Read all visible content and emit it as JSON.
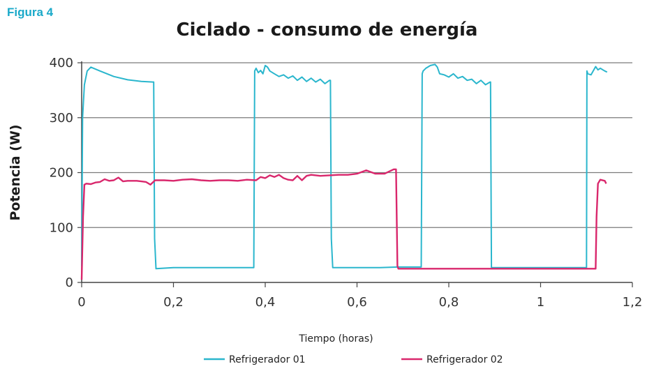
{
  "figure_label": "Figura 4",
  "colors": {
    "accent": "#1aa9c9",
    "series1": "#2ab6cd",
    "series2": "#d9276c",
    "grid": "#7a7a7a"
  },
  "chart_data": {
    "type": "line",
    "title": "Ciclado - consumo de energía",
    "xlabel": "Tiempo (horas)",
    "ylabel": "Potencia (W)",
    "xlim": [
      0,
      1.2
    ],
    "ylim": [
      0,
      400
    ],
    "xticks": [
      "0",
      "0,2",
      "0,4",
      "0,6",
      "0,8",
      "1",
      "1,2"
    ],
    "yticks": [
      "0",
      "100",
      "200",
      "300",
      "400"
    ],
    "grid": "horizontal",
    "legend": "bottom",
    "series": [
      {
        "name": "Refrigerador 01",
        "color": "#2ab6cd",
        "x": [
          0,
          0.002,
          0.006,
          0.012,
          0.02,
          0.04,
          0.07,
          0.1,
          0.13,
          0.155,
          0.157,
          0.159,
          0.162,
          0.2,
          0.25,
          0.3,
          0.35,
          0.375,
          0.377,
          0.38,
          0.385,
          0.39,
          0.395,
          0.4,
          0.405,
          0.41,
          0.42,
          0.43,
          0.44,
          0.45,
          0.46,
          0.47,
          0.48,
          0.49,
          0.5,
          0.51,
          0.52,
          0.53,
          0.54,
          0.542,
          0.544,
          0.547,
          0.6,
          0.65,
          0.69,
          0.72,
          0.74,
          0.742,
          0.744,
          0.75,
          0.76,
          0.77,
          0.775,
          0.78,
          0.79,
          0.8,
          0.81,
          0.82,
          0.83,
          0.84,
          0.85,
          0.86,
          0.87,
          0.88,
          0.89,
          0.891,
          0.893,
          0.95,
          1.0,
          1.05,
          1.1,
          1.101,
          1.103,
          1.11,
          1.12,
          1.125,
          1.13,
          1.14,
          1.145
        ],
        "y": [
          30,
          300,
          360,
          385,
          392,
          385,
          375,
          369,
          366,
          365,
          365,
          80,
          25,
          27,
          27,
          27,
          27,
          27,
          385,
          390,
          382,
          386,
          380,
          395,
          392,
          385,
          380,
          375,
          378,
          372,
          376,
          368,
          374,
          366,
          372,
          365,
          370,
          362,
          368,
          368,
          80,
          27,
          27,
          27,
          28,
          28,
          28,
          380,
          385,
          390,
          395,
          397,
          392,
          380,
          378,
          374,
          380,
          372,
          375,
          368,
          370,
          362,
          368,
          360,
          365,
          365,
          27,
          27,
          27,
          27,
          27,
          385,
          380,
          378,
          393,
          387,
          390,
          385,
          383
        ]
      },
      {
        "name": "Refrigerador 02",
        "color": "#d9276c",
        "x": [
          0,
          0.003,
          0.006,
          0.01,
          0.02,
          0.03,
          0.04,
          0.05,
          0.06,
          0.07,
          0.08,
          0.09,
          0.1,
          0.12,
          0.13,
          0.14,
          0.15,
          0.16,
          0.18,
          0.2,
          0.22,
          0.24,
          0.26,
          0.28,
          0.3,
          0.32,
          0.34,
          0.36,
          0.38,
          0.39,
          0.4,
          0.41,
          0.42,
          0.43,
          0.44,
          0.45,
          0.46,
          0.47,
          0.48,
          0.49,
          0.5,
          0.52,
          0.54,
          0.56,
          0.58,
          0.6,
          0.62,
          0.64,
          0.66,
          0.67,
          0.68,
          0.685,
          0.688,
          0.69,
          0.8,
          0.9,
          1.0,
          1.1,
          1.12,
          1.122,
          1.125,
          1.13,
          1.14,
          1.143
        ],
        "y": [
          5,
          120,
          178,
          180,
          179,
          182,
          183,
          188,
          185,
          186,
          191,
          184,
          185,
          185,
          184,
          183,
          178,
          186,
          186,
          185,
          187,
          188,
          186,
          185,
          186,
          186,
          185,
          187,
          186,
          192,
          190,
          195,
          192,
          196,
          190,
          187,
          186,
          194,
          186,
          194,
          196,
          194,
          195,
          196,
          196,
          198,
          204,
          198,
          198,
          202,
          206,
          206,
          30,
          25,
          25,
          25,
          25,
          25,
          25,
          120,
          180,
          187,
          185,
          180
        ]
      }
    ]
  }
}
